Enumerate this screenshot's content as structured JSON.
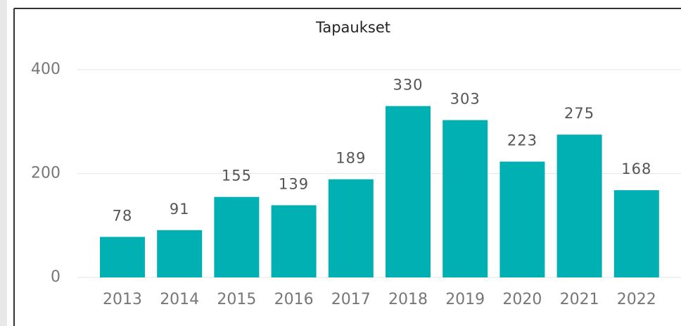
{
  "chart_data": {
    "type": "bar",
    "title": "Tapaukset",
    "categories": [
      "2013",
      "2014",
      "2015",
      "2016",
      "2017",
      "2018",
      "2019",
      "2020",
      "2021",
      "2022"
    ],
    "values": [
      78,
      91,
      155,
      139,
      189,
      330,
      303,
      223,
      275,
      168
    ],
    "color": "#01b0b2",
    "ylim": [
      0,
      400
    ],
    "yticks": [
      0,
      200,
      400
    ],
    "grid": true
  }
}
